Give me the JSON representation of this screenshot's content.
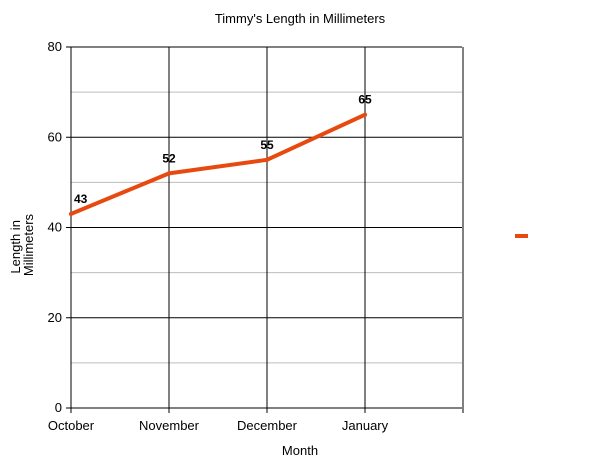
{
  "chart_data": {
    "type": "line",
    "title": "Timmy's Length in Millimeters",
    "xlabel": "Month",
    "ylabel": "Length in Millimeters",
    "ylabel_lines": [
      "Length in",
      "Millimeters"
    ],
    "categories": [
      "October",
      "November",
      "December",
      "January"
    ],
    "series": [
      {
        "values": [
          43,
          52,
          55,
          65
        ],
        "color": "#e8490f"
      }
    ],
    "ylim": [
      0,
      80
    ],
    "yticks": [
      0,
      20,
      40,
      60,
      80
    ],
    "grid": true,
    "legend": "right"
  }
}
